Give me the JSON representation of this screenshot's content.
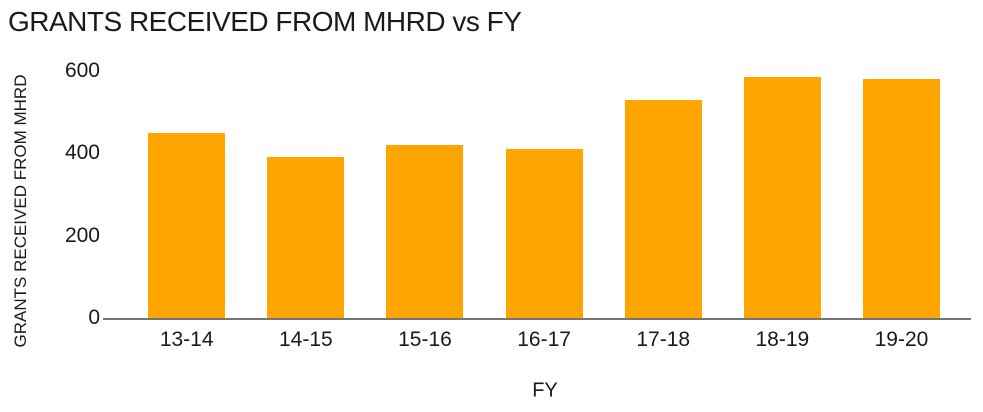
{
  "figure": {
    "title": "GRANTS RECEIVED FROM MHRD vs FY"
  },
  "chart_data": {
    "type": "bar",
    "title": "GRANTS RECEIVED FROM MHRD vs FY",
    "categories": [
      "13-14",
      "14-15",
      "15-16",
      "16-17",
      "17-18",
      "18-19",
      "19-20"
    ],
    "values": [
      450,
      390,
      420,
      410,
      530,
      585,
      580
    ],
    "xlabel": "FY",
    "ylabel": "GRANTS RECEIVED FROM MHRD",
    "ylim": [
      0,
      600
    ],
    "yticks": [
      0,
      200,
      400,
      600
    ],
    "grid": false,
    "legend": false,
    "bar_color": "#FFA500",
    "axis_color": "#757575",
    "text_color": "#1a1a1a",
    "background": "#ffffff"
  }
}
